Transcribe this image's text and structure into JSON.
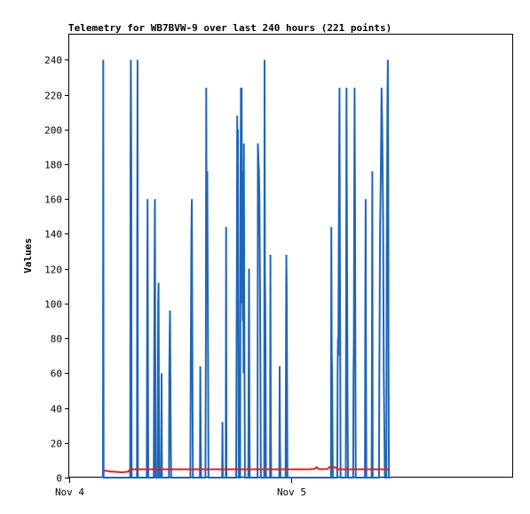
{
  "chart_data": {
    "type": "line",
    "title": "Telemetry for WB7BVW-9 over last 240 hours (221 points)",
    "xlabel": "",
    "ylabel": "Values",
    "ylim": [
      0,
      255
    ],
    "xlim": [
      0,
      240
    ],
    "yticks": [
      0,
      20,
      40,
      60,
      80,
      100,
      120,
      140,
      160,
      180,
      200,
      220,
      240
    ],
    "xticks": [
      {
        "label": "Nov 4",
        "x": 0
      },
      {
        "label": "Nov 5",
        "x": 120
      }
    ],
    "grid": false,
    "legend": "none",
    "series": [
      {
        "color": "#1f66b8",
        "points": [
          [
            18.3,
            0
          ],
          [
            18.4,
            240
          ],
          [
            18.5,
            120
          ],
          [
            18.6,
            0
          ],
          [
            33.0,
            0
          ],
          [
            33.1,
            60
          ],
          [
            33.2,
            180
          ],
          [
            33.4,
            240
          ],
          [
            33.6,
            180
          ],
          [
            33.7,
            60
          ],
          [
            33.8,
            0
          ],
          [
            36.7,
            0
          ],
          [
            36.8,
            120
          ],
          [
            37.0,
            240
          ],
          [
            37.2,
            0
          ],
          [
            42.0,
            0
          ],
          [
            42.2,
            80
          ],
          [
            42.4,
            160
          ],
          [
            42.6,
            80
          ],
          [
            42.8,
            0
          ],
          [
            45.8,
            0
          ],
          [
            46.0,
            60
          ],
          [
            46.2,
            120
          ],
          [
            46.4,
            160
          ],
          [
            46.6,
            70
          ],
          [
            46.8,
            0
          ],
          [
            47.8,
            0
          ],
          [
            48.0,
            60
          ],
          [
            48.2,
            100
          ],
          [
            48.4,
            112
          ],
          [
            48.6,
            40
          ],
          [
            48.8,
            0
          ],
          [
            49.8,
            0
          ],
          [
            50.0,
            60
          ],
          [
            50.2,
            0
          ],
          [
            54.0,
            0
          ],
          [
            54.2,
            60
          ],
          [
            54.4,
            80
          ],
          [
            54.6,
            96
          ],
          [
            54.8,
            60
          ],
          [
            55.0,
            20
          ],
          [
            55.2,
            0
          ],
          [
            65.6,
            0
          ],
          [
            65.8,
            60
          ],
          [
            66.0,
            100
          ],
          [
            66.2,
            140
          ],
          [
            66.4,
            160
          ],
          [
            66.6,
            100
          ],
          [
            66.8,
            40
          ],
          [
            67.0,
            0
          ],
          [
            70.8,
            0
          ],
          [
            71.0,
            64
          ],
          [
            71.2,
            30
          ],
          [
            71.4,
            0
          ],
          [
            73.8,
            0
          ],
          [
            74.0,
            80
          ],
          [
            74.2,
            224
          ],
          [
            74.4,
            140
          ],
          [
            74.6,
            165
          ],
          [
            74.8,
            176
          ],
          [
            75.0,
            120
          ],
          [
            75.2,
            60
          ],
          [
            75.4,
            0
          ],
          [
            82.8,
            0
          ],
          [
            83.0,
            32
          ],
          [
            83.2,
            0
          ],
          [
            84.8,
            0
          ],
          [
            85.0,
            144
          ],
          [
            85.2,
            0
          ],
          [
            90.4,
            0
          ],
          [
            90.6,
            60
          ],
          [
            90.8,
            120
          ],
          [
            91.0,
            208
          ],
          [
            91.2,
            160
          ],
          [
            91.4,
            200
          ],
          [
            91.6,
            100
          ],
          [
            91.8,
            0
          ],
          [
            92.6,
            0
          ],
          [
            92.8,
            160
          ],
          [
            93.0,
            224
          ],
          [
            93.2,
            100
          ],
          [
            93.4,
            224
          ],
          [
            93.6,
            130
          ],
          [
            93.8,
            176
          ],
          [
            94.0,
            90
          ],
          [
            94.2,
            140
          ],
          [
            94.4,
            60
          ],
          [
            94.6,
            192
          ],
          [
            94.8,
            110
          ],
          [
            95.0,
            50
          ],
          [
            95.2,
            0
          ],
          [
            97.0,
            0
          ],
          [
            97.2,
            60
          ],
          [
            97.4,
            120
          ],
          [
            97.6,
            40
          ],
          [
            97.8,
            0
          ],
          [
            102.0,
            0
          ],
          [
            102.2,
            192
          ],
          [
            102.4,
            186
          ],
          [
            102.6,
            180
          ],
          [
            102.8,
            176
          ],
          [
            103.0,
            160
          ],
          [
            103.2,
            130
          ],
          [
            103.4,
            100
          ],
          [
            103.6,
            60
          ],
          [
            103.8,
            0
          ],
          [
            105.6,
            0
          ],
          [
            105.8,
            240
          ],
          [
            106.0,
            120
          ],
          [
            106.2,
            100
          ],
          [
            106.4,
            60
          ],
          [
            106.6,
            0
          ],
          [
            108.8,
            0
          ],
          [
            109.0,
            128
          ],
          [
            109.2,
            30
          ],
          [
            109.4,
            0
          ],
          [
            113.8,
            0
          ],
          [
            114.0,
            64
          ],
          [
            114.2,
            20
          ],
          [
            114.4,
            0
          ],
          [
            117.2,
            0
          ],
          [
            117.4,
            60
          ],
          [
            117.6,
            128
          ],
          [
            117.8,
            110
          ],
          [
            118.0,
            60
          ],
          [
            118.2,
            0
          ],
          [
            141.8,
            0
          ],
          [
            142.0,
            144
          ],
          [
            142.2,
            70
          ],
          [
            142.4,
            60
          ],
          [
            142.6,
            30
          ],
          [
            142.8,
            0
          ],
          [
            145.2,
            0
          ],
          [
            145.4,
            60
          ],
          [
            145.6,
            80
          ],
          [
            145.8,
            70
          ],
          [
            146.0,
            136
          ],
          [
            146.2,
            180
          ],
          [
            146.4,
            224
          ],
          [
            146.6,
            140
          ],
          [
            146.8,
            80
          ],
          [
            147.0,
            0
          ],
          [
            149.8,
            0
          ],
          [
            150.0,
            100
          ],
          [
            150.2,
            224
          ],
          [
            150.4,
            160
          ],
          [
            150.6,
            100
          ],
          [
            150.8,
            40
          ],
          [
            151.0,
            0
          ],
          [
            153.8,
            0
          ],
          [
            154.0,
            60
          ],
          [
            154.2,
            80
          ],
          [
            154.6,
            224
          ],
          [
            154.8,
            160
          ],
          [
            155.0,
            70
          ],
          [
            155.2,
            0
          ],
          [
            160.2,
            0
          ],
          [
            160.4,
            100
          ],
          [
            160.6,
            160
          ],
          [
            160.8,
            60
          ],
          [
            161.0,
            0
          ],
          [
            163.8,
            0
          ],
          [
            164.0,
            80
          ],
          [
            164.2,
            176
          ],
          [
            164.4,
            0
          ],
          [
            167.8,
            0
          ],
          [
            168.0,
            60
          ],
          [
            168.4,
            140
          ],
          [
            168.8,
            176
          ],
          [
            169.2,
            224
          ],
          [
            169.6,
            200
          ],
          [
            170.0,
            150
          ],
          [
            170.4,
            60
          ],
          [
            170.8,
            20
          ],
          [
            171.0,
            0
          ],
          [
            171.8,
            0
          ],
          [
            172.0,
            120
          ],
          [
            172.2,
            160
          ],
          [
            172.4,
            216
          ],
          [
            172.6,
            240
          ],
          [
            172.8,
            180
          ],
          [
            173.0,
            60
          ],
          [
            173.2,
            0
          ],
          [
            173.3,
            0
          ],
          [
            174.0,
            0
          ]
        ]
      },
      {
        "color": "#e02020",
        "points": [
          [
            18.3,
            4
          ],
          [
            20,
            4
          ],
          [
            22,
            3.5
          ],
          [
            25,
            3.3
          ],
          [
            27,
            3.2
          ],
          [
            28,
            3
          ],
          [
            30,
            3.2
          ],
          [
            32,
            3.4
          ],
          [
            33,
            4.8
          ],
          [
            40,
            4.8
          ],
          [
            60,
            4.8
          ],
          [
            80,
            4.8
          ],
          [
            100,
            4.8
          ],
          [
            118,
            4.8
          ],
          [
            130,
            4.8
          ],
          [
            133,
            5
          ],
          [
            134,
            6
          ],
          [
            135,
            5
          ],
          [
            136,
            4.8
          ],
          [
            140,
            5
          ],
          [
            141,
            6
          ],
          [
            142,
            5.6
          ],
          [
            143,
            5.8
          ],
          [
            144,
            6
          ],
          [
            145,
            5
          ],
          [
            146,
            4.8
          ],
          [
            160,
            4.8
          ],
          [
            173.3,
            4.8
          ]
        ]
      }
    ]
  }
}
